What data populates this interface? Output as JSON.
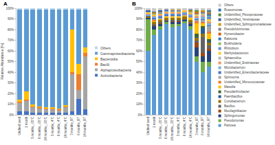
{
  "chart_data": [
    {
      "type": "bar",
      "title": "A",
      "stacked": true,
      "grid": false,
      "legend": "right",
      "ylabel": "Relative Abundance [%]",
      "categories": [
        "Undried seed",
        "1 month",
        "3 months_-20°C",
        "6 months_-20°C",
        "14 months_-20°C",
        "3 months_4°C",
        "6 months_4°C",
        "14 months_4°C",
        "3 months_RT",
        "6 months_RT",
        "14 months_RT"
      ],
      "ylim": [
        0,
        100
      ],
      "yticks": [
        {
          "value": 0,
          "label": "0%"
        },
        {
          "value": 10,
          "label": "10%"
        },
        {
          "value": 20,
          "label": "20%"
        },
        {
          "value": 30,
          "label": "30%"
        },
        {
          "value": 40,
          "label": "40%"
        },
        {
          "value": 50,
          "label": "50%"
        },
        {
          "value": 60,
          "label": "60%"
        },
        {
          "value": 70,
          "label": "70%"
        },
        {
          "value": 80,
          "label": "80%"
        },
        {
          "value": 90,
          "label": "90%"
        },
        {
          "value": 100,
          "label": "100%"
        }
      ],
      "series": [
        {
          "name": "Actinobacteria",
          "color": "#4472C4",
          "values": [
            3,
            3,
            2,
            2,
            2,
            2,
            2,
            2,
            3,
            15,
            5
          ]
        },
        {
          "name": "Alphaproteobacteria",
          "color": "#A5A5A5",
          "values": [
            8,
            10,
            5,
            4,
            3,
            3,
            2,
            5,
            35,
            8,
            50
          ]
        },
        {
          "name": "Bacilli",
          "color": "#ED7D31",
          "values": [
            1,
            1,
            1,
            1,
            1,
            1,
            1,
            1,
            2,
            15,
            3
          ]
        },
        {
          "name": "Bacteroidia",
          "color": "#FFC000",
          "values": [
            2,
            8,
            2,
            1,
            1,
            1,
            1,
            1,
            40,
            10,
            5
          ]
        },
        {
          "name": "Gammaproteobacteria",
          "color": "#5B9BD5",
          "values": [
            85,
            77,
            89,
            91,
            92,
            92,
            93,
            90,
            19,
            51,
            36
          ]
        },
        {
          "name": "Others",
          "color": "#BDD7EE",
          "values": [
            1,
            1,
            1,
            1,
            1,
            1,
            1,
            1,
            1,
            1,
            1
          ]
        }
      ]
    },
    {
      "type": "bar",
      "title": "B",
      "stacked": true,
      "grid": false,
      "legend": "right",
      "categories": [
        "Undried seed",
        "1 month",
        "3 months_-20°C",
        "6 months_-20°C",
        "14 months_-20°C",
        "3 months_4°C",
        "6 months_4°C",
        "14 months_4°C",
        "3 months_RT",
        "6 months_RT",
        "14 months_RT"
      ],
      "ylim": [
        0,
        100
      ],
      "yticks": [
        {
          "value": 0,
          "label": "0%"
        },
        {
          "value": 10,
          "label": "10%"
        },
        {
          "value": 20,
          "label": "20%"
        },
        {
          "value": 30,
          "label": "30%"
        },
        {
          "value": 40,
          "label": "40%"
        },
        {
          "value": 50,
          "label": "50%"
        },
        {
          "value": 60,
          "label": "60%"
        },
        {
          "value": 70,
          "label": "70%"
        },
        {
          "value": 80,
          "label": "80%"
        },
        {
          "value": 90,
          "label": "90%"
        },
        {
          "value": 100,
          "label": "100%"
        }
      ],
      "series": [
        {
          "name": "Pantoea",
          "color": "#5B9BD5",
          "values": [
            60,
            75,
            80,
            85,
            82,
            83,
            86,
            80,
            50,
            40,
            45
          ]
        },
        {
          "name": "Pseudomonas",
          "color": "#70AD47",
          "values": [
            30,
            5,
            3,
            2,
            3,
            2,
            2,
            3,
            5,
            10,
            5
          ]
        },
        {
          "name": "Sphingomonas",
          "color": "#264478",
          "values": [
            1,
            3,
            2,
            1,
            2,
            2,
            1,
            2,
            8,
            5,
            10
          ]
        },
        {
          "name": "Mucilaginibacter",
          "color": "#9E480E",
          "values": [
            0,
            1,
            1,
            0,
            1,
            1,
            0,
            1,
            5,
            3,
            2
          ]
        },
        {
          "name": "Bacillus",
          "color": "#636363",
          "values": [
            0,
            1,
            1,
            1,
            1,
            1,
            1,
            1,
            2,
            15,
            3
          ]
        },
        {
          "name": "Curtobacterium",
          "color": "#997300",
          "values": [
            1,
            2,
            2,
            2,
            2,
            2,
            2,
            2,
            2,
            3,
            3
          ]
        },
        {
          "name": "Paenibacillus",
          "color": "#255E91",
          "values": [
            0,
            0,
            0,
            0,
            0,
            0,
            0,
            0,
            1,
            5,
            1
          ]
        },
        {
          "name": "Pseudarthrobacter",
          "color": "#43682B",
          "values": [
            0,
            0,
            0,
            0,
            0,
            0,
            0,
            0,
            3,
            2,
            2
          ]
        },
        {
          "name": "Massilia",
          "color": "#FFC000",
          "values": [
            0,
            1,
            1,
            1,
            1,
            1,
            1,
            2,
            10,
            3,
            5
          ]
        },
        {
          "name": "Unidentified_Micrococcaceae",
          "color": "#ED7D31",
          "values": [
            0,
            1,
            0,
            0,
            0,
            0,
            0,
            0,
            2,
            1,
            2
          ]
        },
        {
          "name": "Spirosoma",
          "color": "#A5A5A5",
          "values": [
            0,
            1,
            1,
            1,
            1,
            1,
            1,
            1,
            1,
            2,
            5
          ]
        },
        {
          "name": "Unidentified_Enterobacteriaceae",
          "color": "#4472C4",
          "values": [
            1,
            1,
            1,
            1,
            1,
            1,
            1,
            1,
            1,
            1,
            1
          ]
        },
        {
          "name": "Microbacterium",
          "color": "#7CAFDD",
          "values": [
            1,
            1,
            1,
            1,
            1,
            1,
            1,
            1,
            1,
            2,
            2
          ]
        },
        {
          "name": "Unidentified_Erwiniaceae",
          "color": "#F1975A",
          "values": [
            1,
            1,
            1,
            1,
            1,
            1,
            1,
            1,
            1,
            1,
            1
          ]
        },
        {
          "name": "Sphaerotilus",
          "color": "#B7B7B7",
          "values": [
            0,
            0,
            0,
            0,
            0,
            0,
            0,
            0,
            1,
            1,
            1
          ]
        },
        {
          "name": "Methylobacterium",
          "color": "#FFCD33",
          "values": [
            1,
            1,
            1,
            1,
            1,
            1,
            1,
            1,
            1,
            1,
            2
          ]
        },
        {
          "name": "Rhizobium",
          "color": "#698ED0",
          "values": [
            1,
            1,
            1,
            1,
            1,
            1,
            0,
            1,
            1,
            1,
            2
          ]
        },
        {
          "name": "Burkholderia",
          "color": "#8CC168",
          "values": [
            0,
            0,
            0,
            0,
            0,
            0,
            0,
            0,
            0,
            0,
            1
          ]
        },
        {
          "name": "Ralstonia",
          "color": "#327DC2",
          "values": [
            0,
            0,
            0,
            0,
            0,
            0,
            0,
            0,
            0,
            0,
            1
          ]
        },
        {
          "name": "Hymenobacter",
          "color": "#D26012",
          "values": [
            0,
            0,
            0,
            0,
            0,
            0,
            0,
            0,
            1,
            1,
            1
          ]
        },
        {
          "name": "Pseudofulvimonas",
          "color": "#848484",
          "values": [
            0,
            0,
            0,
            0,
            0,
            0,
            0,
            0,
            0,
            0,
            1
          ]
        },
        {
          "name": "Unidentified_Sphingomonadaceae",
          "color": "#CC9A00",
          "values": [
            0,
            1,
            1,
            0,
            1,
            1,
            0,
            1,
            1,
            1,
            1
          ]
        },
        {
          "name": "Unidentified_Yersiniaceae",
          "color": "#3A5DA0",
          "values": [
            1,
            1,
            1,
            1,
            0,
            0,
            0,
            1,
            0,
            0,
            0
          ]
        },
        {
          "name": "Unidentified_Pleosporaceae",
          "color": "#5A8A3A",
          "values": [
            0,
            0,
            0,
            0,
            0,
            0,
            0,
            0,
            1,
            0,
            0
          ]
        },
        {
          "name": "Roseomonas",
          "color": "#2E75B6",
          "values": [
            0,
            0,
            0,
            0,
            0,
            0,
            0,
            0,
            0,
            0,
            1
          ]
        },
        {
          "name": "Others",
          "color": "#C9C9C9",
          "values": [
            2,
            3,
            2,
            1,
            1,
            1,
            2,
            1,
            2,
            2,
            2
          ]
        }
      ]
    }
  ]
}
